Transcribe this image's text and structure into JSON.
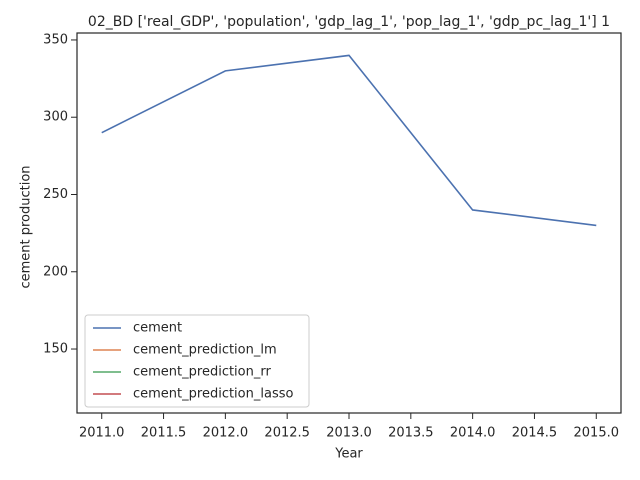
{
  "chart_data": {
    "type": "line",
    "title": "02_BD ['real_GDP', 'population', 'gdp_lag_1', 'pop_lag_1', 'gdp_pc_lag_1'] 1",
    "x_label": "Year",
    "y_label": "cement production",
    "x": [
      2011,
      2012,
      2013,
      2014,
      2015
    ],
    "series": [
      {
        "name": "cement",
        "color": "#4c72b0",
        "values": [
          290,
          330,
          340,
          240,
          230
        ]
      },
      {
        "name": "cement_prediction_lm",
        "color": "#dd8452",
        "values": [
          null,
          null,
          null,
          null,
          null
        ]
      },
      {
        "name": "cement_prediction_rr",
        "color": "#55a868",
        "values": [
          null,
          null,
          null,
          null,
          null
        ]
      },
      {
        "name": "cement_prediction_lasso",
        "color": "#c44e52",
        "values": [
          null,
          null,
          null,
          null,
          null
        ]
      }
    ],
    "xlim": [
      2010.8,
      2015.2
    ],
    "xticks": [
      {
        "value": 2011,
        "label": "2011.0"
      },
      {
        "value": 2011.5,
        "label": "2011.5"
      },
      {
        "value": 2012,
        "label": "2012.0"
      },
      {
        "value": 2012.5,
        "label": "2012.5"
      },
      {
        "value": 2013,
        "label": "2013.0"
      },
      {
        "value": 2013.5,
        "label": "2013.5"
      },
      {
        "value": 2014,
        "label": "2014.0"
      },
      {
        "value": 2014.5,
        "label": "2014.5"
      },
      {
        "value": 2015,
        "label": "2015.0"
      }
    ],
    "ylim": [
      108.6,
      354.5
    ],
    "yticks": [
      150,
      200,
      250,
      300,
      350
    ],
    "legend": "lower left"
  }
}
